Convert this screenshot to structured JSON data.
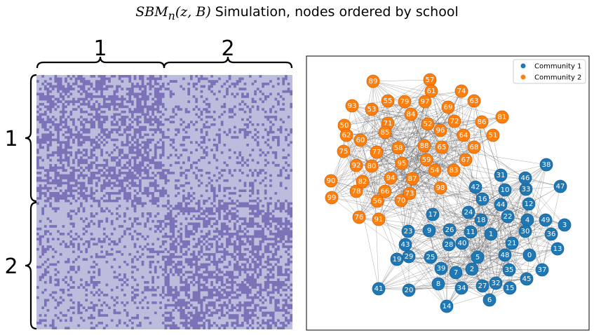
{
  "title": {
    "math": "SBM",
    "subscript": "n",
    "args": "(z, B)",
    "rest": " Simulation, nodes ordered by school"
  },
  "heatmap": {
    "n": 100,
    "block_sizes": [
      50,
      50
    ],
    "color_edge": "#7b72b8",
    "color_noedge": "#bcbddc",
    "block_labels_top": [
      "1",
      "2"
    ],
    "block_labels_left": [
      "1",
      "2"
    ]
  },
  "network": {
    "legend": [
      {
        "label": "Community 1",
        "color": "#1f77b4"
      },
      {
        "label": "Community 2",
        "color": "#ff7f0e"
      }
    ],
    "edge_color": "#555555",
    "node_ids_community_1": [
      0,
      1,
      2,
      3,
      4,
      5,
      6,
      7,
      8,
      9,
      10,
      11,
      12,
      13,
      14,
      15,
      16,
      17,
      18,
      19,
      20,
      21,
      22,
      23,
      24,
      25,
      26,
      27,
      28,
      29,
      30,
      31,
      32,
      33,
      34,
      35,
      36,
      37,
      38,
      39,
      40,
      41,
      42,
      43,
      44,
      45,
      46,
      47,
      48,
      49
    ],
    "node_ids_community_2": [
      50,
      51,
      52,
      53,
      54,
      55,
      56,
      57,
      58,
      59,
      60,
      61,
      62,
      63,
      64,
      65,
      66,
      67,
      68,
      69,
      70,
      71,
      72,
      73,
      74,
      75,
      76,
      77,
      78,
      79,
      80,
      81,
      82,
      83,
      84,
      85,
      86,
      87,
      88,
      89,
      90,
      91,
      92,
      93,
      94,
      95,
      96,
      97,
      98,
      99
    ]
  }
}
